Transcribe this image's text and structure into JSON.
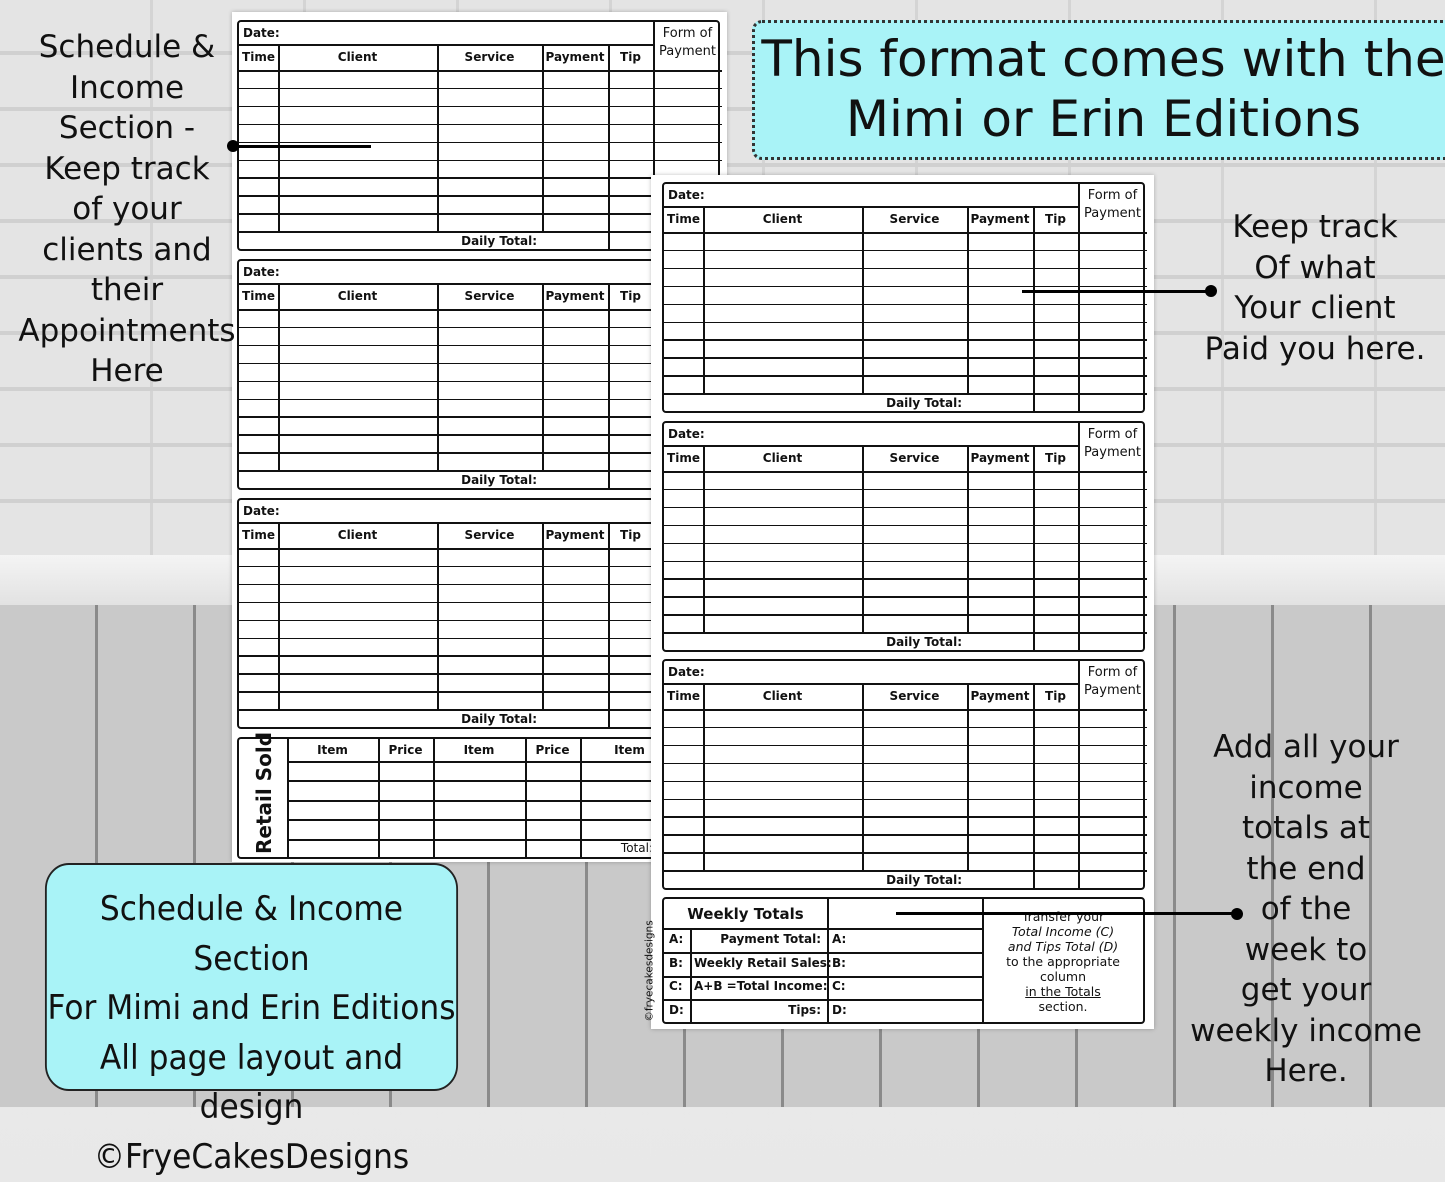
{
  "block": {
    "date": "Date:",
    "time": "Time",
    "client": "Client",
    "service": "Service",
    "payment": "Payment",
    "tip": "Tip",
    "fop1": "Form of",
    "fop2": "Payment",
    "daily_total": "Daily Total:"
  },
  "retail": {
    "title": "Retail Sold",
    "headers": [
      "Item",
      "Price",
      "Item",
      "Price",
      "Item"
    ],
    "total": "Total:"
  },
  "weekly": {
    "title": "Weekly Totals",
    "rows": [
      {
        "key": "A:",
        "label": "Payment Total:"
      },
      {
        "key": "B:",
        "label": "Weekly Retail Sales:"
      },
      {
        "key": "C:",
        "label": "A+B =Total Income:"
      },
      {
        "key": "D:",
        "label": "Tips:"
      }
    ],
    "note": [
      "Transfer your",
      "Total Income (C)",
      "and Tips Total (D)",
      "to the appropriate",
      "column",
      "in the Totals",
      "section."
    ]
  },
  "copyright_side": "©fryecakesdesigns",
  "annotations": {
    "left": "Schedule &\nIncome\nSection -\nKeep track\nof your\nclients and\ntheir\nAppointments\nHere",
    "right": "Keep track\nOf what\nYour client\nPaid you here.",
    "bottom_right": "Add all your\nincome\ntotals at\nthe end\nof the\nweek to\nget your\nweekly income\nHere."
  },
  "banner_top": {
    "line1": "This format comes with the",
    "line2": "Mimi or Erin Editions"
  },
  "banner_bottom": {
    "lines": [
      "Schedule & Income Section",
      "For Mimi and Erin Editions",
      "All page layout and design",
      "©FryeCakesDesigns"
    ]
  },
  "colors": {
    "callout": "#a9f3f7"
  }
}
